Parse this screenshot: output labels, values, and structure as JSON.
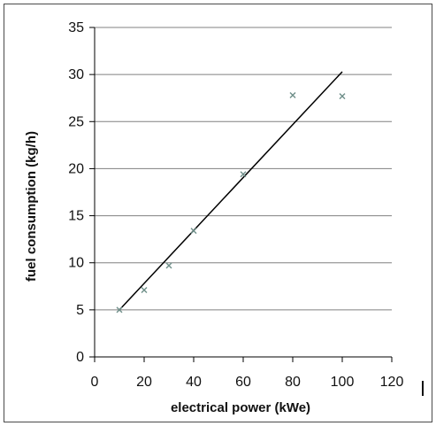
{
  "chart_data": {
    "type": "scatter",
    "title": "",
    "xlabel": "electrical power (kWe)",
    "ylabel": "fuel consumption (kg/h)",
    "xlim": [
      0,
      120
    ],
    "ylim": [
      0,
      35
    ],
    "x_ticks": [
      0,
      20,
      40,
      60,
      80,
      100,
      120
    ],
    "y_ticks": [
      0,
      5,
      10,
      15,
      20,
      25,
      30,
      35
    ],
    "grid": "horizontal",
    "legend": "none",
    "series": [
      {
        "x": [
          10,
          20,
          30,
          40,
          60,
          80,
          100
        ],
        "y": [
          5.0,
          7.1,
          9.7,
          13.4,
          19.4,
          27.8,
          27.7
        ],
        "color": "#6f8f8a",
        "marker": "x"
      }
    ],
    "trendline": {
      "type": "linear",
      "x": [
        10,
        100
      ],
      "y": [
        5.0,
        30.3
      ],
      "color": "#000000"
    },
    "axis_color": "#000000",
    "grid_color": "#808080"
  }
}
